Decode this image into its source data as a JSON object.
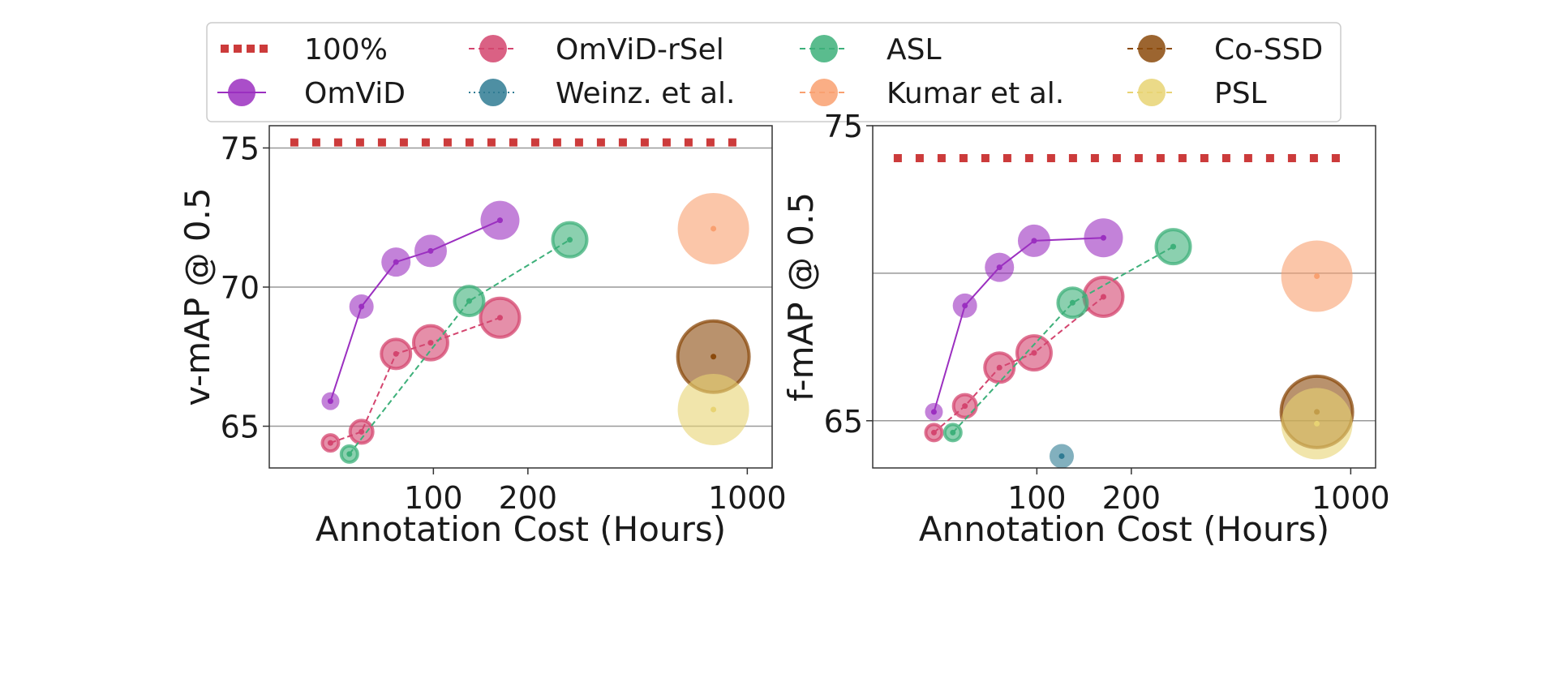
{
  "legend": {
    "items": [
      {
        "key": "full",
        "label": "100%",
        "color": "#cc3b3b",
        "style": "dotted-square"
      },
      {
        "key": "omvid",
        "label": "OmViD",
        "color": "#9b2fc0",
        "style": "solid"
      },
      {
        "key": "omvid_rsel",
        "label": "OmViD-rSel",
        "color": "#d4456f",
        "style": "dashed"
      },
      {
        "key": "weinz",
        "label": "Weinz. et al.",
        "color": "#2f7b93",
        "style": "dotted"
      },
      {
        "key": "asl",
        "label": "ASL",
        "color": "#3db07a",
        "style": "dashed"
      },
      {
        "key": "kumar",
        "label": "Kumar et al.",
        "color": "#f9a070",
        "style": "dashed"
      },
      {
        "key": "cossd",
        "label": "Co-SSD",
        "color": "#8b4a0c",
        "style": "dashed"
      },
      {
        "key": "psl",
        "label": "PSL",
        "color": "#e8d373",
        "style": "dashed"
      }
    ]
  },
  "chart_data": [
    {
      "type": "scatter",
      "xlabel": "Annotation Cost (Hours)",
      "ylabel": "v-mAP @ 0.5",
      "xscale": "log",
      "xlim": [
        30,
        1200
      ],
      "ylim": [
        63.5,
        75.8
      ],
      "xticks": [
        {
          "value": 100,
          "label": "100"
        },
        {
          "value": 200,
          "label": "200"
        },
        {
          "value": 1000,
          "label": "1000"
        }
      ],
      "yticks": [
        {
          "value": 65,
          "label": "65"
        },
        {
          "value": 70,
          "label": "70"
        },
        {
          "value": 75,
          "label": "75"
        }
      ],
      "grid_y": true,
      "reference": {
        "name": "100%",
        "value": 75.2,
        "x_from": 35,
        "x_to": 1000
      },
      "series": [
        {
          "key": "omvid",
          "name": "OmViD",
          "line": "solid",
          "points": [
            [
              47,
              65.9
            ],
            [
              59,
              69.3
            ],
            [
              76,
              70.9
            ],
            [
              98,
              71.3
            ],
            [
              163,
              72.4
            ]
          ]
        },
        {
          "key": "omvid_rsel",
          "name": "OmViD-rSel",
          "line": "dashed",
          "points": [
            [
              47,
              64.4
            ],
            [
              59,
              64.8
            ],
            [
              76,
              67.6
            ],
            [
              98,
              68.0
            ],
            [
              163,
              68.9
            ]
          ]
        },
        {
          "key": "asl",
          "name": "ASL",
          "line": "dashed",
          "points": [
            [
              54,
              64.0
            ],
            [
              130,
              69.5
            ],
            [
              272,
              71.7
            ]
          ]
        },
        {
          "key": "kumar",
          "name": "Kumar et al.",
          "line": "none",
          "points": [
            [
              780,
              72.1
            ]
          ]
        },
        {
          "key": "cossd",
          "name": "Co-SSD",
          "line": "none",
          "points": [
            [
              780,
              67.5
            ]
          ]
        },
        {
          "key": "psl",
          "name": "PSL",
          "line": "none",
          "points": [
            [
              780,
              65.6
            ]
          ]
        }
      ]
    },
    {
      "type": "scatter",
      "xlabel": "Annotation Cost (Hours)",
      "ylabel": "f-mAP @ 0.5",
      "xscale": "log",
      "xlim": [
        30,
        1200
      ],
      "ylim": [
        63.4,
        75.0
      ],
      "xticks": [
        {
          "value": 100,
          "label": "100"
        },
        {
          "value": 200,
          "label": "200"
        },
        {
          "value": 1000,
          "label": "1000"
        }
      ],
      "yticks": [
        {
          "value": 65,
          "label": "65"
        },
        {
          "value": 75,
          "label": "75"
        }
      ],
      "grid_y_values": [
        65,
        70
      ],
      "reference": {
        "name": "100%",
        "value": 73.9,
        "x_from": 35,
        "x_to": 1000
      },
      "series": [
        {
          "key": "omvid",
          "name": "OmViD",
          "line": "solid",
          "points": [
            [
              47,
              65.3
            ],
            [
              59,
              68.9
            ],
            [
              76,
              70.2
            ],
            [
              98,
              71.1
            ],
            [
              163,
              71.2
            ]
          ]
        },
        {
          "key": "omvid_rsel",
          "name": "OmViD-rSel",
          "line": "dashed",
          "points": [
            [
              47,
              64.6
            ],
            [
              59,
              65.5
            ],
            [
              76,
              66.8
            ],
            [
              98,
              67.3
            ],
            [
              163,
              69.2
            ]
          ]
        },
        {
          "key": "asl",
          "name": "ASL",
          "line": "dashed",
          "points": [
            [
              54,
              64.6
            ],
            [
              130,
              69.0
            ],
            [
              272,
              70.9
            ]
          ]
        },
        {
          "key": "weinz",
          "name": "Weinz. et al.",
          "line": "none",
          "points": [
            [
              120,
              63.8
            ]
          ]
        },
        {
          "key": "kumar",
          "name": "Kumar et al.",
          "line": "none",
          "points": [
            [
              780,
              69.9
            ]
          ]
        },
        {
          "key": "cossd",
          "name": "Co-SSD",
          "line": "none",
          "points": [
            [
              780,
              65.3
            ]
          ]
        },
        {
          "key": "psl",
          "name": "PSL",
          "line": "none",
          "points": [
            [
              780,
              64.9
            ]
          ]
        }
      ]
    }
  ]
}
